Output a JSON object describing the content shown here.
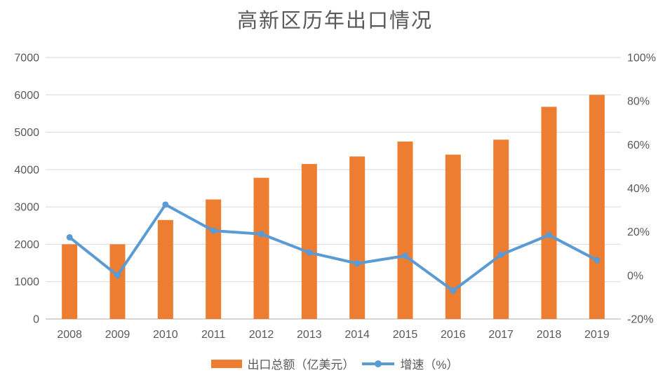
{
  "chart_data": {
    "type": "combo-bar-line",
    "title": "高新区历年出口情况",
    "categories": [
      "2008",
      "2009",
      "2010",
      "2011",
      "2012",
      "2013",
      "2014",
      "2015",
      "2016",
      "2017",
      "2018",
      "2019"
    ],
    "series": [
      {
        "name": "出口总额（亿美元）",
        "type": "bar",
        "axis": "left",
        "color": "#ED7D31",
        "values": [
          2000,
          2000,
          2650,
          3200,
          3780,
          4150,
          4350,
          4750,
          4400,
          4800,
          5680,
          6000
        ]
      },
      {
        "name": "增速（%）",
        "type": "line",
        "axis": "right",
        "color": "#5B9BD5",
        "values": [
          17.5,
          0,
          32.5,
          20.5,
          19,
          10.5,
          5.5,
          9,
          -7,
          9.5,
          18.5,
          7
        ]
      }
    ],
    "left_axis": {
      "min": 0,
      "max": 7000,
      "step": 1000,
      "tick_labels": [
        "0",
        "1000",
        "2000",
        "3000",
        "4000",
        "5000",
        "6000",
        "7000"
      ]
    },
    "right_axis": {
      "min": -20,
      "max": 100,
      "step": 20,
      "tick_labels": [
        "-20%",
        "0%",
        "20%",
        "40%",
        "60%",
        "80%",
        "100%"
      ]
    },
    "grid": true,
    "legend_position": "bottom",
    "colors": {
      "grid": "#D9D9D9",
      "axis_line": "#BFBFBF",
      "text": "#595959",
      "background": "#FFFFFF"
    }
  }
}
